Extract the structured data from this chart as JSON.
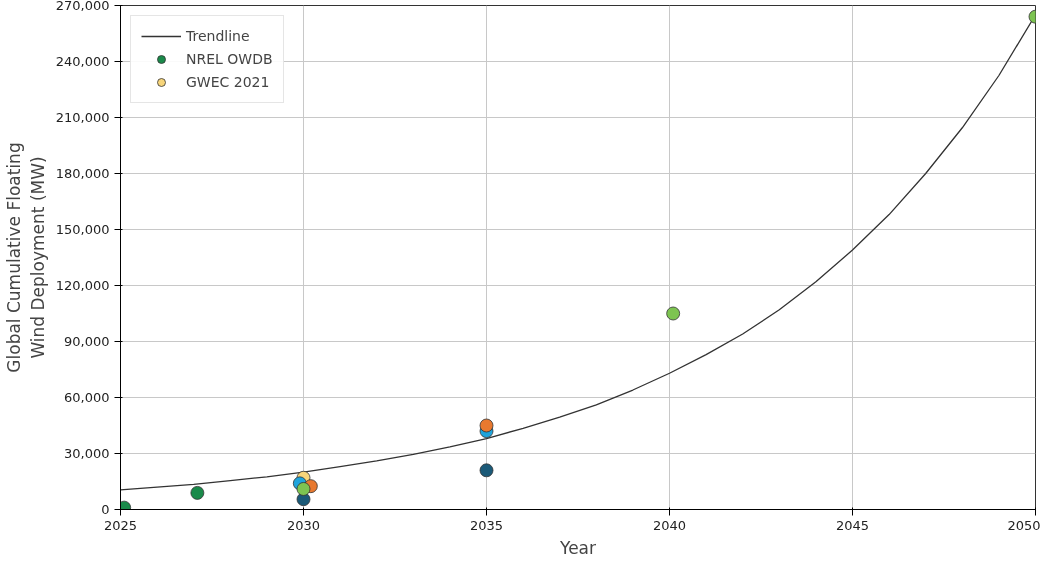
{
  "chart_data": {
    "type": "scatter",
    "xlabel": "Year",
    "ylabel": "Global Cumulative Floating\nWind Deployment (MW)",
    "xlim": [
      2025,
      2050
    ],
    "xticks": [
      2025,
      2030,
      2035,
      2040,
      2045,
      2050
    ],
    "ylim": [
      0,
      270000
    ],
    "yticks": [
      0,
      {
        "value": 30000,
        "label": "30,000"
      },
      {
        "value": 60000,
        "label": "60,000"
      },
      {
        "value": 90000,
        "label": "90,000"
      },
      {
        "value": 120000,
        "label": "120,000"
      },
      {
        "value": 150000,
        "label": "150,000"
      },
      {
        "value": 180000,
        "label": "180,000"
      },
      {
        "value": 210000,
        "label": "210,000"
      },
      {
        "value": 240000,
        "label": "240,000"
      },
      {
        "value": 270000,
        "label": "270,000"
      }
    ],
    "grid": true,
    "legend": "top left",
    "marker": "circle",
    "series": [
      {
        "name": "Trendline",
        "type": "line",
        "marker": "none",
        "color": "#333333",
        "x": [
          2025,
          2026,
          2027,
          2028,
          2029,
          2030,
          2031,
          2032,
          2033,
          2034,
          2035,
          2036,
          2037,
          2038,
          2039,
          2040,
          2041,
          2042,
          2043,
          2044,
          2045,
          2046,
          2047,
          2048,
          2049,
          2050
        ],
        "values": [
          10500,
          12000,
          13500,
          15500,
          17500,
          20000,
          23000,
          26000,
          29500,
          33500,
          38000,
          43500,
          49500,
          56000,
          64000,
          73000,
          83000,
          94000,
          107000,
          122000,
          139000,
          158000,
          180000,
          204500,
          232500,
          265000
        ]
      },
      {
        "name": "NREL OWDB",
        "color": "#1a8a4a",
        "x": [
          2025.1,
          2027.1
        ],
        "values": [
          1000,
          8900
        ]
      },
      {
        "name": "GWEC 2021",
        "color": "#f7d57a",
        "x": [
          2030
        ],
        "values": [
          17000
        ]
      },
      {
        "color": "#1b5a78",
        "x": [
          2030,
          2035
        ],
        "values": [
          5500,
          21000
        ]
      },
      {
        "color": "#1ea4dc",
        "x": [
          2029.9,
          2035
        ],
        "values": [
          14000,
          42000
        ]
      },
      {
        "color": "#e8792f",
        "x": [
          2030.2,
          2035
        ],
        "values": [
          12500,
          45000
        ]
      },
      {
        "color": "#7dc451",
        "x": [
          2030,
          2040.1,
          2050
        ],
        "values": [
          11000,
          105000,
          264000
        ]
      }
    ]
  }
}
